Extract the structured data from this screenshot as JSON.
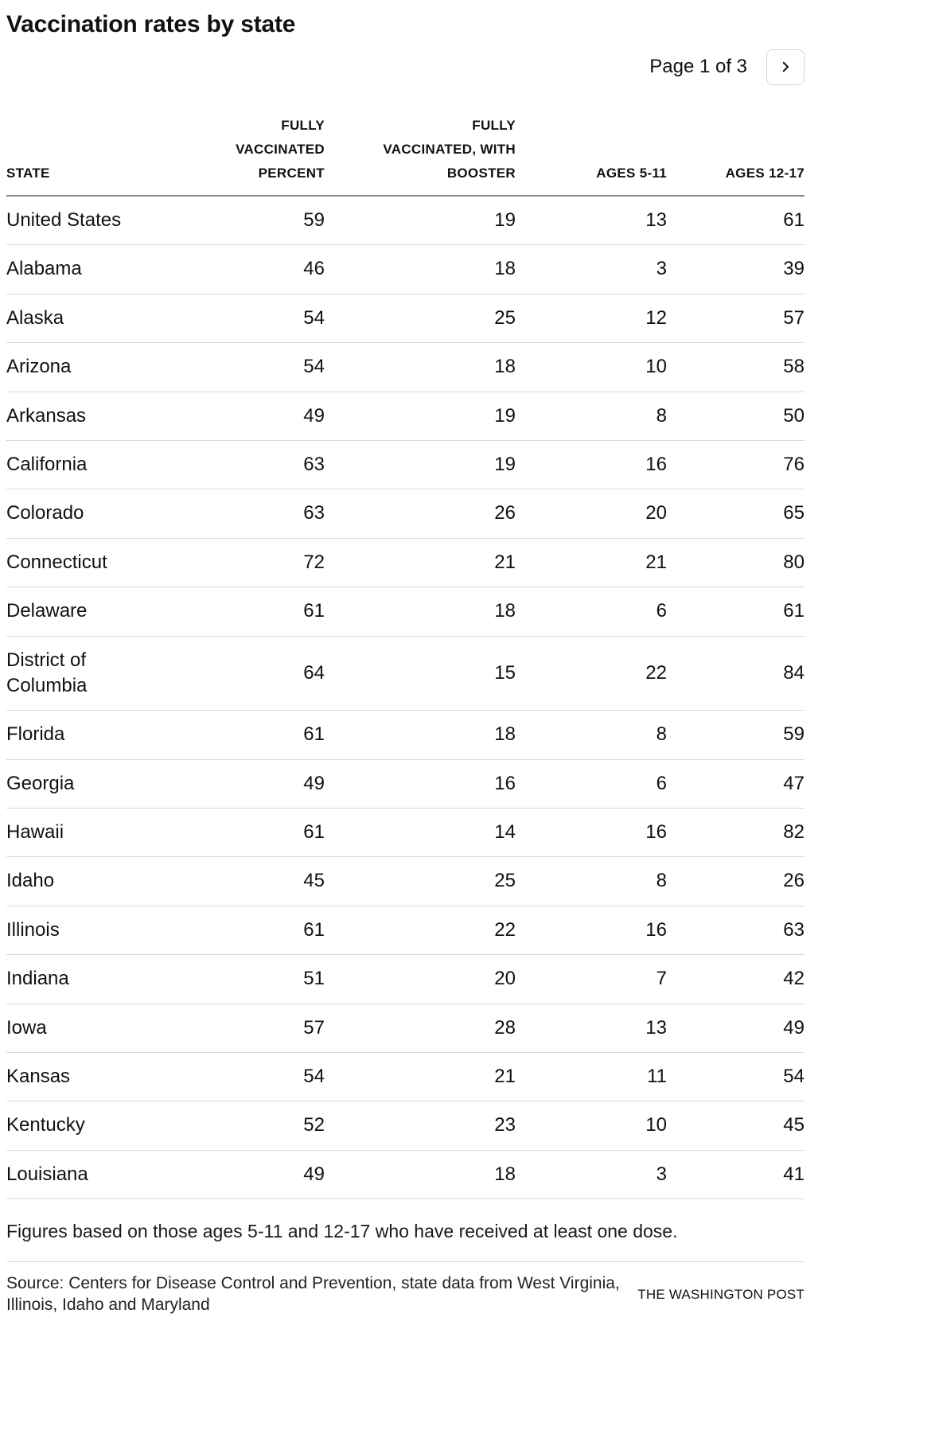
{
  "page": {
    "title": "Vaccination rates by state",
    "pagination": {
      "label": "Page 1 of 3",
      "next_icon": "chevron-right-icon"
    },
    "footnote": "Figures based on those ages 5-11 and 12-17 who have received at least one dose.",
    "source": "Source: Centers for Disease Control and Prevention, state data from West Virginia, Illinois, Idaho and Maryland",
    "attribution": "THE WASHINGTON POST"
  },
  "chart_data": {
    "type": "table",
    "title": "Vaccination rates by state",
    "columns": [
      "STATE",
      "FULLY VACCINATED PERCENT",
      "FULLY VACCINATED, WITH BOOSTER",
      "AGES 5-11",
      "AGES 12-17"
    ],
    "column_header_lines": [
      [
        "STATE"
      ],
      [
        "FULLY",
        "VACCINATED",
        "PERCENT"
      ],
      [
        "FULLY",
        "VACCINATED, WITH",
        "BOOSTER"
      ],
      [
        "AGES 5-11"
      ],
      [
        "AGES 12-17"
      ]
    ],
    "rows": [
      [
        "United States",
        59,
        19,
        13,
        61
      ],
      [
        "Alabama",
        46,
        18,
        3,
        39
      ],
      [
        "Alaska",
        54,
        25,
        12,
        57
      ],
      [
        "Arizona",
        54,
        18,
        10,
        58
      ],
      [
        "Arkansas",
        49,
        19,
        8,
        50
      ],
      [
        "California",
        63,
        19,
        16,
        76
      ],
      [
        "Colorado",
        63,
        26,
        20,
        65
      ],
      [
        "Connecticut",
        72,
        21,
        21,
        80
      ],
      [
        "Delaware",
        61,
        18,
        6,
        61
      ],
      [
        "District of Columbia",
        64,
        15,
        22,
        84
      ],
      [
        "Florida",
        61,
        18,
        8,
        59
      ],
      [
        "Georgia",
        49,
        16,
        6,
        47
      ],
      [
        "Hawaii",
        61,
        14,
        16,
        82
      ],
      [
        "Idaho",
        45,
        25,
        8,
        26
      ],
      [
        "Illinois",
        61,
        22,
        16,
        63
      ],
      [
        "Indiana",
        51,
        20,
        7,
        42
      ],
      [
        "Iowa",
        57,
        28,
        13,
        49
      ],
      [
        "Kansas",
        54,
        21,
        11,
        54
      ],
      [
        "Kentucky",
        52,
        23,
        10,
        45
      ],
      [
        "Louisiana",
        49,
        18,
        3,
        41
      ]
    ]
  }
}
